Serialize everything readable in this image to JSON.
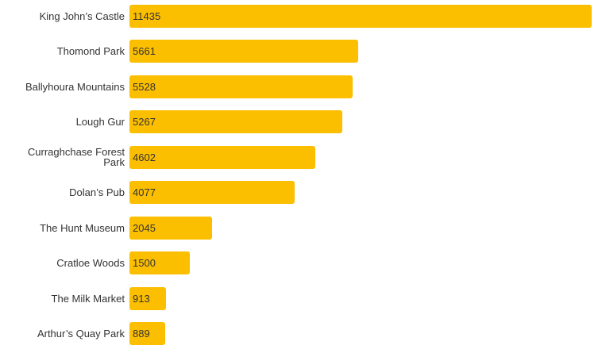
{
  "chart_data": {
    "type": "bar",
    "orientation": "horizontal",
    "color": "#fbbf00",
    "categories": [
      "King John’s Castle",
      "Thomond Park",
      "Ballyhoura Mountains",
      "Lough Gur",
      "Curraghchase Forest Park",
      "Dolan’s Pub",
      "The Hunt Museum",
      "Cratloe Woods",
      "The Milk Market",
      "Arthur’s Quay Park"
    ],
    "values": [
      11435,
      5661,
      5528,
      5267,
      4602,
      4077,
      2045,
      1500,
      913,
      889
    ]
  }
}
